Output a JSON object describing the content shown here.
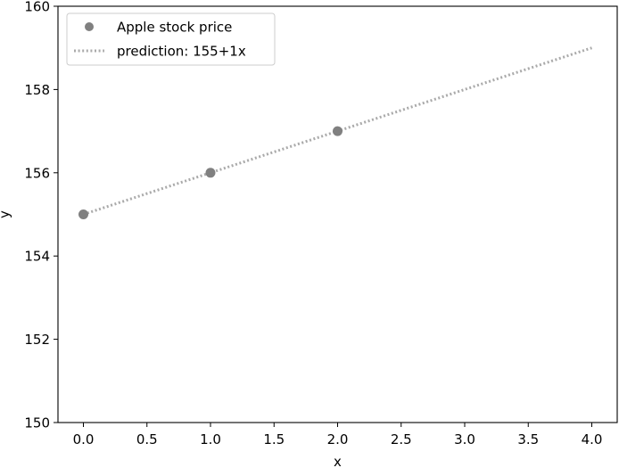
{
  "chart_data": {
    "type": "scatter",
    "title": "",
    "xlabel": "x",
    "ylabel": "y",
    "xlim": [
      -0.2,
      4.2
    ],
    "ylim": [
      150,
      160
    ],
    "xticks": [
      0.0,
      0.5,
      1.0,
      1.5,
      2.0,
      2.5,
      3.0,
      3.5,
      4.0
    ],
    "xtick_labels": [
      "0.0",
      "0.5",
      "1.0",
      "1.5",
      "2.0",
      "2.5",
      "3.0",
      "3.5",
      "4.0"
    ],
    "yticks": [
      150,
      152,
      154,
      156,
      158,
      160
    ],
    "ytick_labels": [
      "150",
      "152",
      "154",
      "156",
      "158",
      "160"
    ],
    "grid": false,
    "legend_position": "top-left",
    "series": [
      {
        "name": "Apple stock price",
        "kind": "scatter",
        "color": "#808080",
        "x": [
          0,
          1,
          2
        ],
        "y": [
          155,
          156,
          157
        ]
      },
      {
        "name": "prediction: 155+1x",
        "kind": "line",
        "style": "dotted",
        "color": "#aaaaaa",
        "x": [
          0,
          4
        ],
        "y": [
          155,
          159
        ]
      }
    ]
  }
}
